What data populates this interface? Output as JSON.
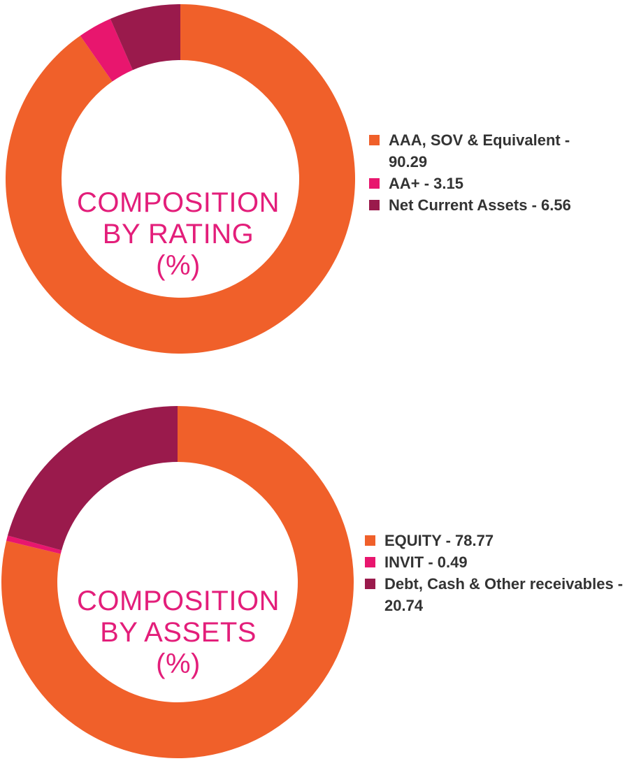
{
  "colors": {
    "orange": "#F0602A",
    "pink": "#E8166E",
    "maroon": "#9A1A4C",
    "title": "#E31E7A"
  },
  "chart_data": [
    {
      "type": "pie",
      "donut": true,
      "title_lines": [
        "COMPOSITION",
        "BY RATING",
        "(%)"
      ],
      "legend_placement": "right",
      "start": "top",
      "direction": "clockwise",
      "categories": [
        "AAA, SOV & Equivalent",
        "AA+",
        "Net Current Assets"
      ],
      "values": [
        90.29,
        3.15,
        6.56
      ],
      "colors": [
        "#F0602A",
        "#E8166E",
        "#9A1A4C"
      ],
      "legend_labels": [
        "AAA, SOV & Equivalent - 90.29",
        "AA+ - 3.15",
        "Net Current Assets - 6.56"
      ]
    },
    {
      "type": "pie",
      "donut": true,
      "title_lines": [
        "COMPOSITION",
        "BY ASSETS",
        "(%)"
      ],
      "legend_placement": "right",
      "start": "top",
      "direction": "clockwise",
      "categories": [
        "EQUITY",
        "INVIT",
        "Debt, Cash & Other receivables"
      ],
      "values": [
        78.77,
        0.49,
        20.74
      ],
      "colors": [
        "#F0602A",
        "#E8166E",
        "#9A1A4C"
      ],
      "legend_labels": [
        "EQUITY - 78.77",
        "INVIT - 0.49",
        "Debt, Cash & Other receivables - 20.74"
      ]
    }
  ]
}
